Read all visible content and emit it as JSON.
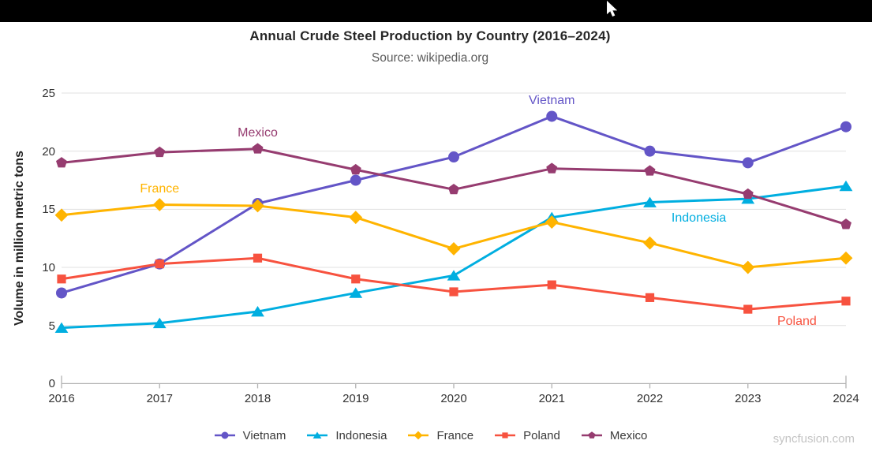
{
  "watermark": "syncfusion.com",
  "chart_data": {
    "type": "line",
    "title": "Annual Crude Steel Production by Country (2016–2024)",
    "subtitle": "Source: wikipedia.org",
    "xlabel": "",
    "ylabel": "Volume in million metric tons",
    "categories": [
      "2016",
      "2017",
      "2018",
      "2019",
      "2020",
      "2021",
      "2022",
      "2023",
      "2024"
    ],
    "ylim": [
      0,
      25
    ],
    "y_interval": 5,
    "grid": "horizontal",
    "legend_position": "bottom",
    "series": [
      {
        "name": "Vietnam",
        "color": "#6355C7",
        "marker": "circle",
        "values": [
          7.8,
          10.3,
          15.5,
          17.5,
          19.5,
          23.0,
          20.0,
          19.0,
          22.1
        ]
      },
      {
        "name": "Indonesia",
        "color": "#00AEE0",
        "marker": "triangle",
        "values": [
          4.8,
          5.2,
          6.2,
          7.8,
          9.3,
          14.3,
          15.6,
          15.9,
          17.0
        ]
      },
      {
        "name": "France",
        "color": "#FFB400",
        "marker": "diamond",
        "values": [
          14.5,
          15.4,
          15.3,
          14.3,
          11.6,
          13.9,
          12.1,
          10.0,
          10.8
        ]
      },
      {
        "name": "Poland",
        "color": "#F7523F",
        "marker": "square",
        "values": [
          9.0,
          10.3,
          10.8,
          9.0,
          7.9,
          8.5,
          7.4,
          6.4,
          7.1
        ]
      },
      {
        "name": "Mexico",
        "color": "#963C70",
        "marker": "pentagon",
        "values": [
          19.0,
          19.9,
          20.2,
          18.4,
          16.7,
          18.5,
          18.3,
          16.3,
          13.7
        ]
      }
    ],
    "annotations": [
      {
        "text": "Vietnam",
        "color": "#6355C7",
        "year": 2021,
        "value": 24.35
      },
      {
        "text": "Mexico",
        "color": "#963C70",
        "year": 2018,
        "value": 21.55
      },
      {
        "text": "France",
        "color": "#FFB400",
        "year": 2017,
        "value": 16.75
      },
      {
        "text": "Indonesia",
        "color": "#00AEE0",
        "year": 2022.5,
        "value": 14.2
      },
      {
        "text": "Poland",
        "color": "#F7523F",
        "year": 2023.5,
        "value": 5.3
      }
    ]
  }
}
